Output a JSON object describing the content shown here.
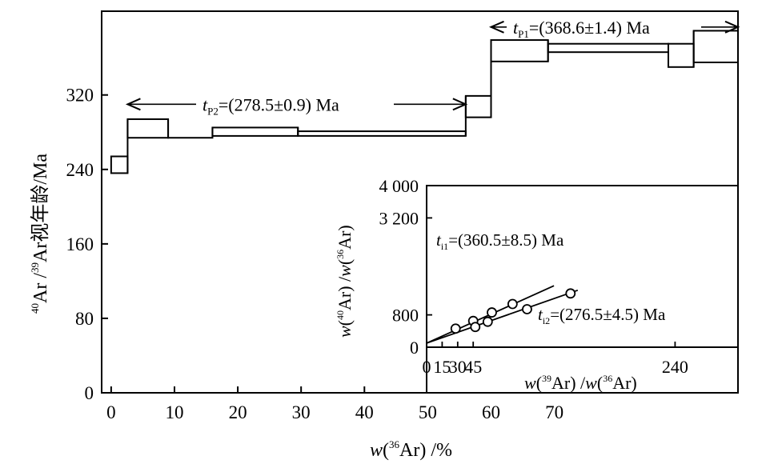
{
  "chart_data": [
    {
      "type": "step",
      "xlabel": "w(³⁶Ar) /%",
      "ylabel": "⁴⁰Ar /³⁹Ar视年龄/Ma",
      "xlim": [
        -1.5,
        99
      ],
      "ylim": [
        0,
        410
      ],
      "x_ticks": [
        0,
        10,
        20,
        30,
        40,
        50,
        60,
        70
      ],
      "y_ticks": [
        0,
        80,
        160,
        240,
        320
      ],
      "grid": false,
      "steps": [
        {
          "x0": 0,
          "x1": 2.6,
          "y_top": 254,
          "y_bot": 236
        },
        {
          "x0": 2.6,
          "x1": 9,
          "y_top": 294,
          "y_bot": 274
        },
        {
          "x0": 9,
          "x1": 16,
          "y_top": 274,
          "y_bot": 274
        },
        {
          "x0": 16,
          "x1": 29.5,
          "y_top": 285,
          "y_bot": 276
        },
        {
          "x0": 29.5,
          "x1": 56,
          "y_top": 281,
          "y_bot": 276
        },
        {
          "x0": 56,
          "x1": 60,
          "y_top": 319,
          "y_bot": 296
        },
        {
          "x0": 60,
          "x1": 69,
          "y_top": 379,
          "y_bot": 356
        },
        {
          "x0": 69,
          "x1": 88,
          "y_top": 375,
          "y_bot": 366
        },
        {
          "x0": 88,
          "x1": 92,
          "y_top": 375,
          "y_bot": 350
        },
        {
          "x0": 92,
          "x1": 99,
          "y_top": 389,
          "y_bot": 355
        }
      ],
      "annotations": [
        {
          "label_italic": "t",
          "label_sub": "P2",
          "text": "=(278.5±0.9) Ma",
          "x0": 2.6,
          "x1": 56,
          "y": 310
        },
        {
          "label_italic": "t",
          "label_sub": "P1",
          "text": "=(368.6±1.4) Ma",
          "x0": 60,
          "x1": 99,
          "y": 393
        }
      ]
    },
    {
      "type": "scatter",
      "inset": true,
      "xlabel": "w(³⁹Ar) /w(³⁶Ar)",
      "ylabel": "w(⁴⁰Ar) /w(³⁶Ar)",
      "xlim": [
        0,
        300
      ],
      "ylim": [
        0,
        4000
      ],
      "x_tick_labels": [
        "0",
        "15",
        "30",
        "45",
        "240"
      ],
      "x_tick_values": [
        0,
        15,
        30,
        45,
        240
      ],
      "y_tick_labels": [
        "0",
        "800",
        "3 200",
        "4 000"
      ],
      "y_tick_values": [
        0,
        800,
        3200,
        4000
      ],
      "series": [
        {
          "points": [
            [
              28,
              460
            ],
            [
              45,
              650
            ],
            [
              63,
              860
            ],
            [
              83,
              1070
            ]
          ]
        },
        {
          "points": [
            [
              47,
              500
            ],
            [
              59,
              630
            ],
            [
              97,
              940
            ],
            [
              139,
              1330
            ]
          ]
        }
      ],
      "lines": [
        {
          "label_italic": "t",
          "label_sub": "i1",
          "text": "=(360.5±8.5) Ma",
          "x0": 0,
          "y0": 100,
          "x1": 123,
          "y1": 1520
        },
        {
          "label_italic": "t",
          "label_sub": "i2",
          "text": "=(276.5±4.5) Ma",
          "x0": 0,
          "y0": 100,
          "x1": 146,
          "y1": 1410
        }
      ]
    }
  ]
}
